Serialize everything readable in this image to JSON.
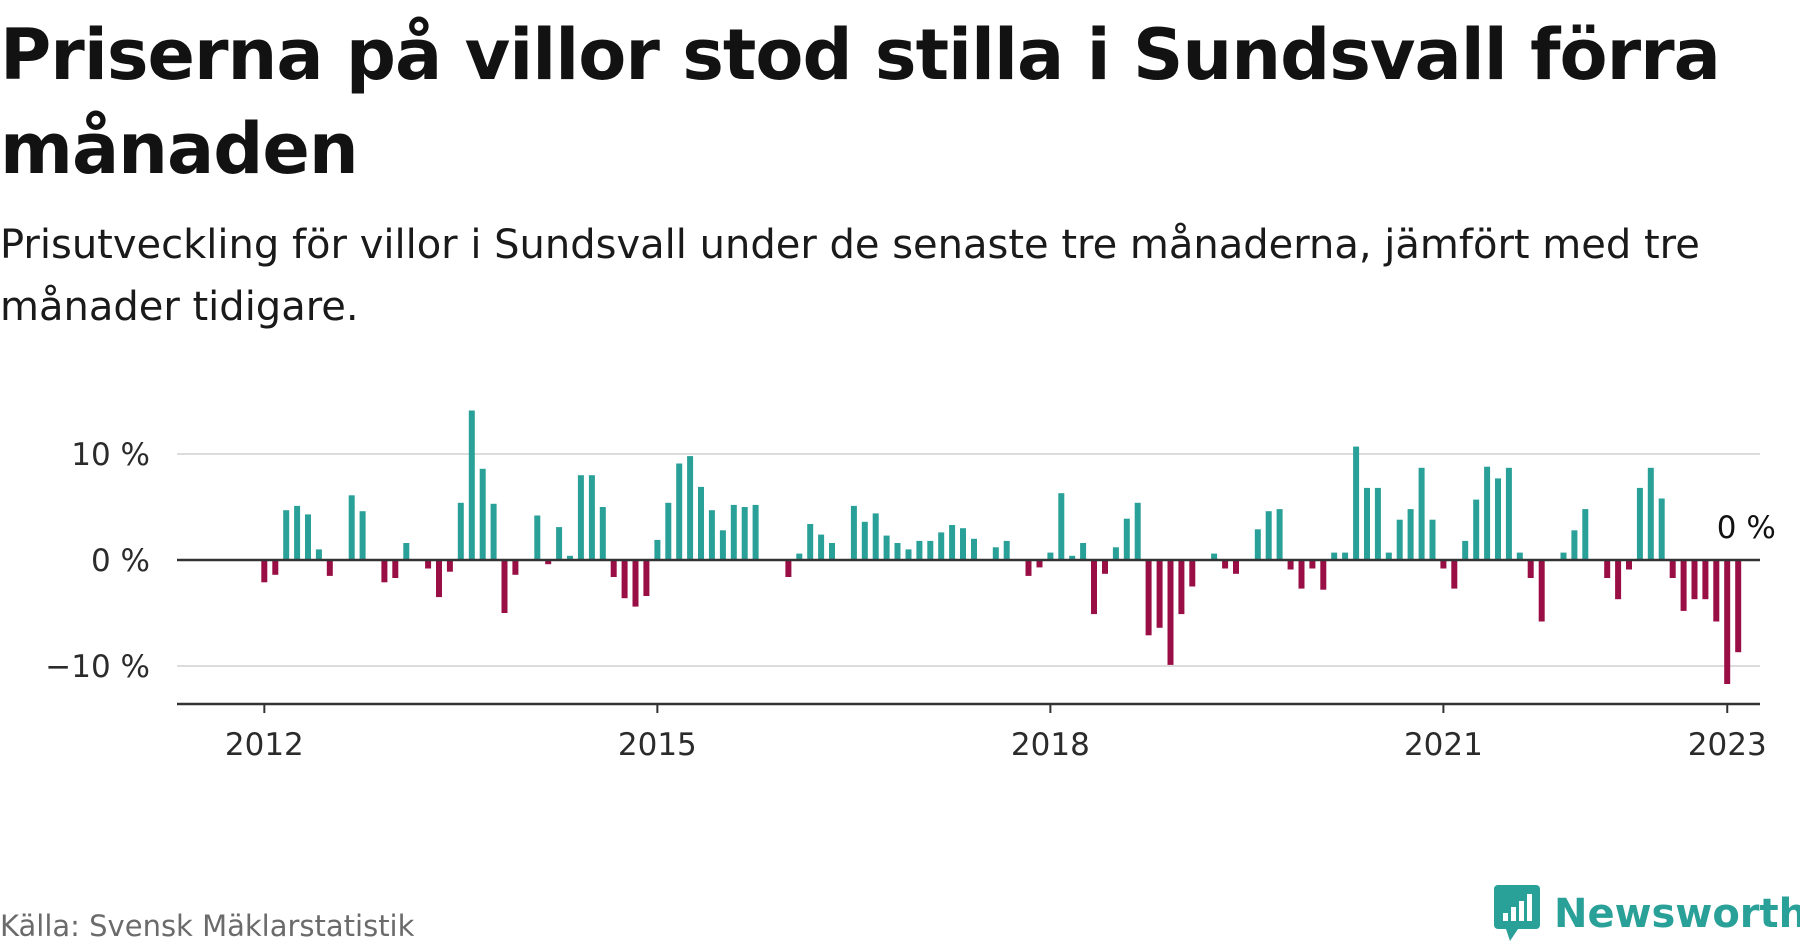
{
  "title": "Priserna på villor stod stilla i Sundsvall förra månaden",
  "subtitle": "Prisutveckling för villor i Sundsvall under de senaste tre månaderna, jämfört med tre månader tidigare.",
  "source": "Källa: Svensk Mäklarstatistik",
  "brand": "Newsworthy",
  "colors": {
    "positive": "#2aa198",
    "negative": "#990f45",
    "grid": "#dcdcdc",
    "axis": "#333333",
    "brand": "#2aa198"
  },
  "chart_data": {
    "type": "bar",
    "title": "Priserna på villor stod stilla i Sundsvall förra månaden",
    "subtitle": "Prisutveckling för villor i Sundsvall under de senaste tre månaderna, jämfört med tre månader tidigare.",
    "xlabel": "",
    "ylabel": "",
    "ylim": [
      -14,
      15
    ],
    "xlim": [
      "2011-05",
      "2023-06"
    ],
    "grid": true,
    "yticks": [
      {
        "value": 10,
        "label": "10 %"
      },
      {
        "value": 0,
        "label": "0 %"
      },
      {
        "value": -10,
        "label": "−10 %"
      }
    ],
    "xticks": [
      {
        "value": "2012-01",
        "label": "2012"
      },
      {
        "value": "2015-01",
        "label": "2015"
      },
      {
        "value": "2018-01",
        "label": "2018"
      },
      {
        "value": "2021-01",
        "label": "2021"
      },
      {
        "value": "2023-03",
        "label": "2023"
      }
    ],
    "annotation": {
      "label": "0 %",
      "x": "2023-02",
      "y": 0
    },
    "start": "2012-01",
    "values": [
      -2.1,
      -1.4,
      4.7,
      5.1,
      4.3,
      1.0,
      -1.5,
      0.0,
      6.1,
      4.6,
      0.0,
      -2.1,
      -1.7,
      1.6,
      0.0,
      -0.8,
      -3.5,
      -1.1,
      5.4,
      14.1,
      8.6,
      5.3,
      -5.0,
      -1.4,
      0.0,
      4.2,
      -0.4,
      3.1,
      0.4,
      8.0,
      8.0,
      5.0,
      -1.6,
      -3.6,
      -4.4,
      -3.4,
      1.9,
      5.4,
      9.1,
      9.8,
      6.9,
      4.7,
      2.8,
      5.2,
      5.0,
      5.2,
      0.0,
      0.0,
      -1.6,
      0.6,
      3.4,
      2.4,
      1.6,
      0.0,
      5.1,
      3.6,
      4.4,
      2.3,
      1.6,
      1.0,
      1.8,
      1.8,
      2.6,
      3.3,
      3.0,
      2.0,
      0.0,
      1.2,
      1.8,
      0.0,
      -1.5,
      -0.7,
      0.7,
      6.3,
      0.4,
      1.6,
      -5.1,
      -1.3,
      1.2,
      3.9,
      5.4,
      -7.1,
      -6.4,
      -9.9,
      -5.1,
      -2.5,
      0.0,
      0.6,
      -0.8,
      -1.3,
      0.0,
      2.9,
      4.6,
      4.8,
      -0.9,
      -2.7,
      -0.8,
      -2.8,
      0.7,
      0.7,
      10.7,
      6.8,
      6.8,
      0.7,
      3.8,
      4.8,
      8.7,
      3.8,
      -0.8,
      -2.7,
      1.8,
      5.7,
      8.8,
      7.7,
      8.7,
      0.7,
      -1.7,
      -5.8,
      0.0,
      0.7,
      2.8,
      4.8,
      0.0,
      -1.7,
      -3.7,
      -0.9,
      6.8,
      8.7,
      5.8,
      -1.7,
      -4.8,
      -3.7,
      -3.7,
      -5.8,
      -11.7,
      -8.7,
      0.0
    ]
  }
}
